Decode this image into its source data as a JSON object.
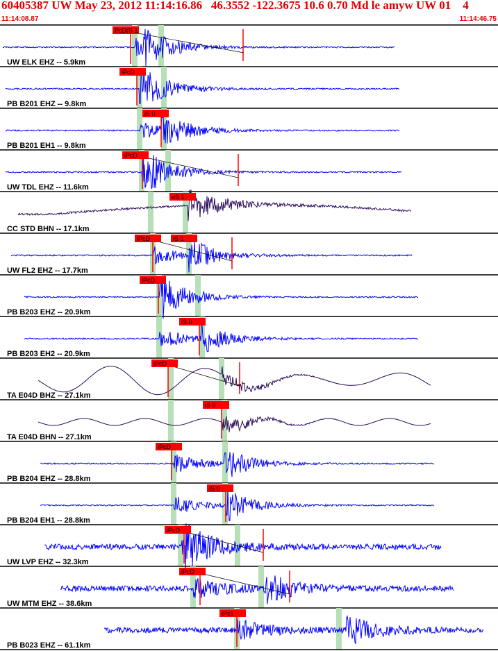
{
  "header": {
    "title": "60405387 UW May 23, 2012 11:14:16.86   46.3552 -122.3675 10.6 0.70 Md le amyw UW 01    4",
    "time_start": "11:14:08.87",
    "time_end": "11:14:46.75"
  },
  "colors": {
    "accent": "#e00000",
    "trace_blue": "#0000ff",
    "trace_purple": "#2a0a5a",
    "pick_green": "#b8e0b8",
    "pick_red": "#ff0000"
  },
  "chart_data": {
    "type": "seismogram",
    "title": "60405387 UW May 23, 2012 11:14:16.86   46.3552 -122.3675 10.6 0.70 Md le amyw UW 01    4",
    "x_range": [
      "11:14:08.87",
      "11:14:46.75"
    ],
    "grid": false,
    "traces": [
      {
        "label": "UW ELK EHZ -- 5.9km",
        "station": "ELK",
        "network": "UW",
        "channel": "EHZ",
        "distance_km": 5.9,
        "color": "blue",
        "style": "burst",
        "picks": [
          {
            "label": "PcD(S 1",
            "phase": "P"
          }
        ]
      },
      {
        "label": "PB B201 EHZ -- 9.8km",
        "station": "B201",
        "network": "PB",
        "channel": "EHZ",
        "distance_km": 9.8,
        "color": "blue",
        "style": "burst",
        "picks": [
          {
            "label": "iPcD",
            "phase": "P"
          }
        ]
      },
      {
        "label": "PB B201 EH1 -- 9.8km",
        "station": "B201",
        "network": "PB",
        "channel": "EH1",
        "distance_km": 9.8,
        "color": "blue",
        "style": "burst",
        "picks": [
          {
            "label": "iS 0",
            "phase": "S"
          }
        ]
      },
      {
        "label": "UW TDL EHZ -- 11.6km",
        "station": "TDL",
        "network": "UW",
        "channel": "EHZ",
        "distance_km": 11.6,
        "color": "blue",
        "style": "burst",
        "picks": [
          {
            "label": "iPcD",
            "phase": "P"
          }
        ]
      },
      {
        "label": "CC STD BHN -- 17.1km",
        "station": "STD",
        "network": "CC",
        "channel": "BHN",
        "distance_km": 17.1,
        "color": "purple",
        "style": "drift",
        "picks": [
          {
            "label": "eS 1",
            "phase": "S"
          }
        ]
      },
      {
        "label": "UW FL2 EHZ -- 17.7km",
        "station": "FL2",
        "network": "UW",
        "channel": "EHZ",
        "distance_km": 17.7,
        "color": "blue",
        "style": "burst",
        "picks": [
          {
            "label": "iPcD",
            "phase": "P"
          },
          {
            "label": "iS 1",
            "phase": "S"
          }
        ]
      },
      {
        "label": "PB B203 EHZ -- 20.9km",
        "station": "B203",
        "network": "PB",
        "channel": "EHZ",
        "distance_km": 20.9,
        "color": "blue",
        "style": "burst",
        "picks": [
          {
            "label": "iPcD",
            "phase": "P"
          }
        ]
      },
      {
        "label": "PB B203 EH2 -- 20.9km",
        "station": "B203",
        "network": "PB",
        "channel": "EH2",
        "distance_km": 20.9,
        "color": "blue",
        "style": "burst",
        "picks": [
          {
            "label": "iS 0",
            "phase": "S"
          }
        ]
      },
      {
        "label": "TA E04D BHZ -- 27.1km",
        "station": "E04D",
        "network": "TA",
        "channel": "BHZ",
        "distance_km": 27.1,
        "color": "purple",
        "style": "wave",
        "picks": [
          {
            "label": "iPcD",
            "phase": "P"
          }
        ]
      },
      {
        "label": "TA E04D BHN -- 27.1km",
        "station": "E04D",
        "network": "TA",
        "channel": "BHN",
        "distance_km": 27.1,
        "color": "purple",
        "style": "wave",
        "picks": [
          {
            "label": "iS 0",
            "phase": "S"
          }
        ]
      },
      {
        "label": "PB B204 EHZ -- 28.8km",
        "station": "B204",
        "network": "PB",
        "channel": "EHZ",
        "distance_km": 28.8,
        "color": "blue",
        "style": "burst",
        "picks": [
          {
            "label": "iPcD",
            "phase": "P"
          }
        ]
      },
      {
        "label": "PB B204 EH1 -- 28.8km",
        "station": "B204",
        "network": "PB",
        "channel": "EH1",
        "distance_km": 28.8,
        "color": "blue",
        "style": "burst",
        "picks": [
          {
            "label": "iS 0",
            "phase": "S"
          }
        ]
      },
      {
        "label": "UW LVP EHZ -- 32.3km",
        "station": "LVP",
        "network": "UW",
        "channel": "EHZ",
        "distance_km": 32.3,
        "color": "blue",
        "style": "burst",
        "picks": [
          {
            "label": "iPcD",
            "phase": "P"
          }
        ]
      },
      {
        "label": "UW MTM EHZ -- 38.6km",
        "station": "MTM",
        "network": "UW",
        "channel": "EHZ",
        "distance_km": 38.6,
        "color": "blue",
        "style": "burst",
        "picks": [
          {
            "label": "iPcD",
            "phase": "P"
          }
        ]
      },
      {
        "label": "PB B023 EHZ -- 61.1km",
        "station": "B023",
        "network": "PB",
        "channel": "EHZ",
        "distance_km": 61.1,
        "color": "blue",
        "style": "burst",
        "picks": [
          {
            "label": "iPc1",
            "phase": "P"
          }
        ]
      }
    ]
  }
}
